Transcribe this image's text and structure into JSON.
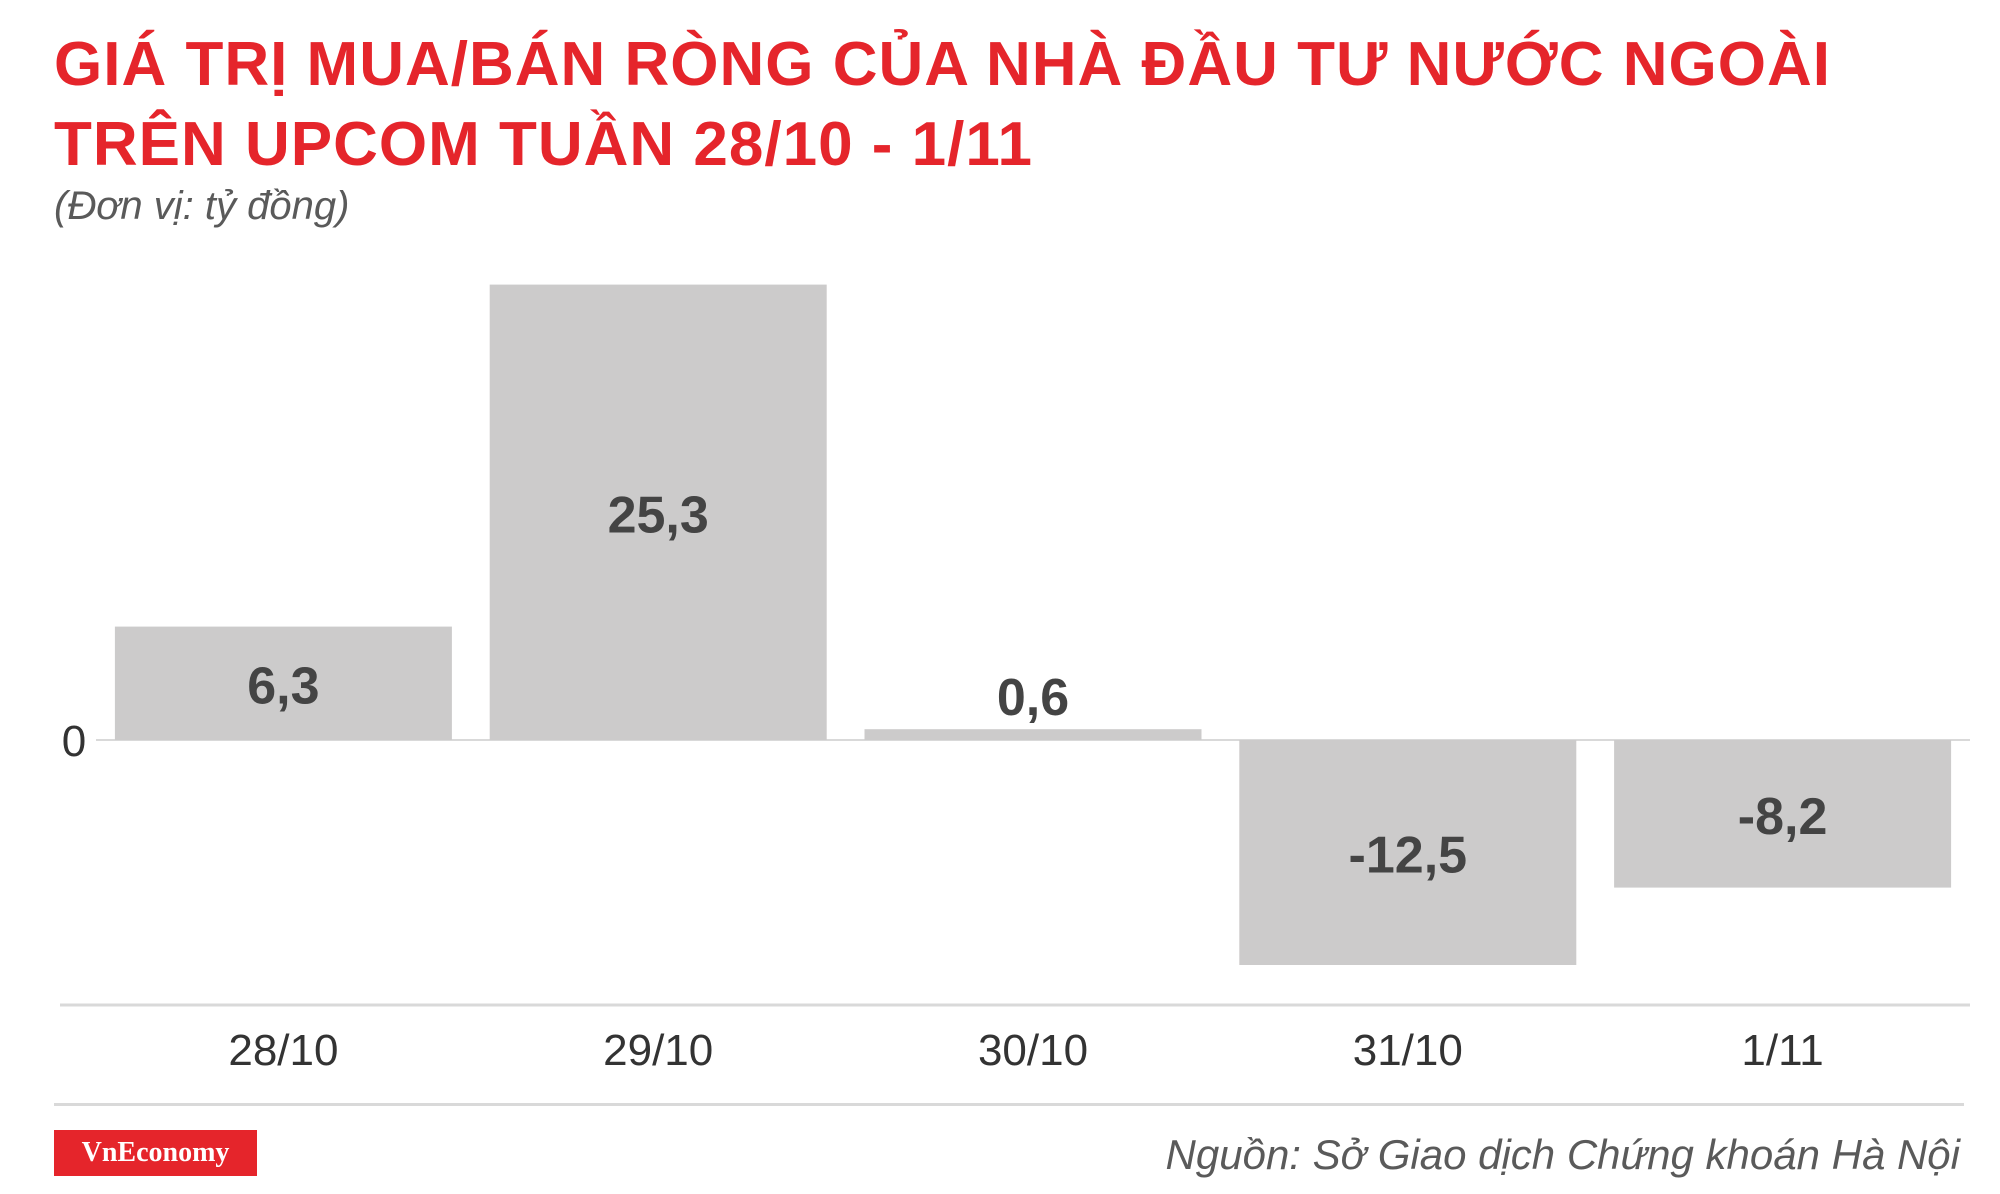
{
  "header": {
    "title_line_1": "GIÁ TRỊ MUA/BÁN RÒNG CỦA NHÀ ĐẦU TƯ NƯỚC NGOÀI",
    "title_line_2": "TRÊN UPCOM TUẦN 28/10 - 1/11",
    "unit_note": "(Đơn vị: tỷ đồng)"
  },
  "footer": {
    "logo_text": "VnEconomy",
    "source": "Nguồn: Sở Giao dịch Chứng khoán Hà Nội"
  },
  "colors": {
    "title": "#e5252b",
    "bar": "#cccbcb",
    "value_label": "#444444",
    "axis_text": "#333333",
    "rule": "#d9d9d9",
    "logo_bg": "#e5252b"
  },
  "chart_data": {
    "type": "bar",
    "title": "GIÁ TRỊ MUA/BÁN RÒNG CỦA NHÀ ĐẦU TƯ NƯỚC NGOÀI TRÊN UPCOM TUẦN 28/10 - 1/11",
    "categories": [
      "28/10",
      "29/10",
      "30/10",
      "31/10",
      "1/11"
    ],
    "values": [
      6.3,
      25.3,
      0.6,
      -12.5,
      -8.2
    ],
    "value_labels": [
      "6,3",
      "25,3",
      "0,6",
      "-12,5",
      "-8,2"
    ],
    "y_tick_labels": [
      {
        "value": 0,
        "label": "0"
      }
    ],
    "xlabel": "",
    "ylabel": "",
    "unit": "(Đơn vị: tỷ đồng)",
    "ylim": [
      -12.5,
      25.3
    ],
    "grid": false,
    "legend": "none"
  }
}
